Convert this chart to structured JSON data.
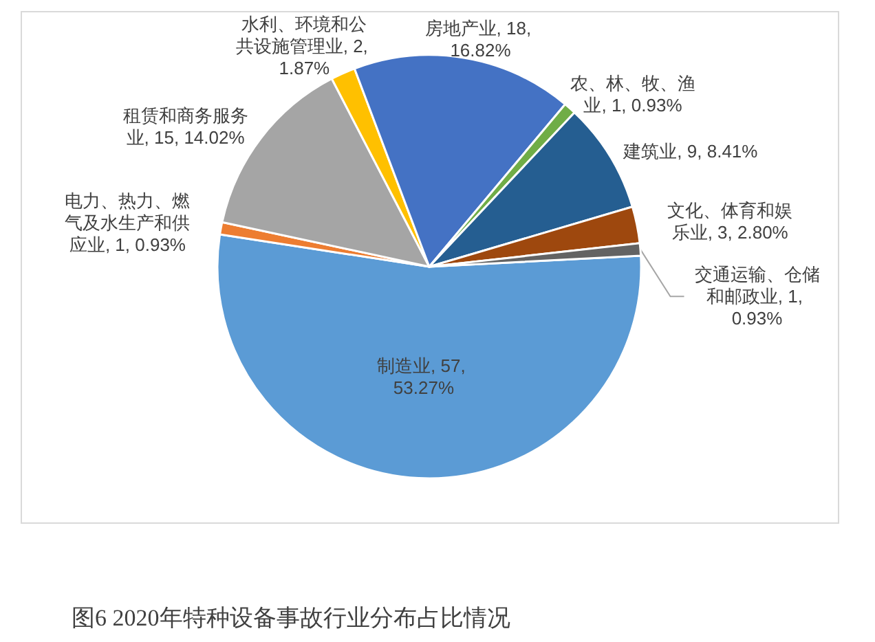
{
  "chart_data": {
    "type": "pie",
    "categories": [
      "制造业",
      "电力、热力、燃气及水生产和供应业",
      "租赁和商务服务业",
      "水利、环境和公共设施管理业",
      "房地产业",
      "农、林、牧、渔业",
      "建筑业",
      "文化、体育和娱乐业",
      "交通运输、仓储和邮政业"
    ],
    "values": [
      57,
      1,
      15,
      2,
      18,
      1,
      9,
      3,
      1
    ],
    "value_labels": [
      "57, 53.27%",
      "1, 0.93%",
      "15, 14.02%",
      "2, 1.87%",
      "18, 16.82%",
      "1, 0.93%",
      "9, 8.41%",
      "3, 2.80%",
      "1, 0.93%"
    ],
    "colors": [
      "#5b9bd5",
      "#ed7d31",
      "#a5a5a5",
      "#ffc000",
      "#4472c4",
      "#70ad47",
      "#255e91",
      "#9e480e",
      "#636363"
    ],
    "annotations": [
      "图6 2020年特种设备事故行业分布占比情况"
    ]
  }
}
